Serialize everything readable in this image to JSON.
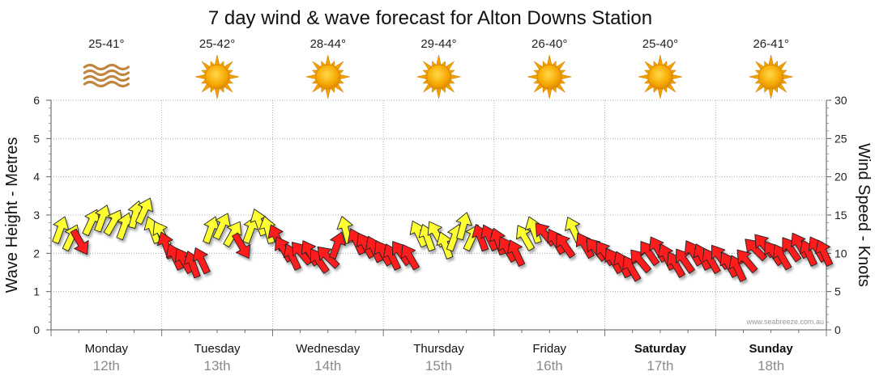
{
  "chart_data": {
    "type": "wind-wave-forecast",
    "title": "7 day wind & wave forecast for Alton Downs Station",
    "ylabel_left": "Wave Height - Metres",
    "ylabel_right": "Wind Speed - Knots",
    "ylim_left": [
      0,
      6
    ],
    "ylim_right": [
      0,
      30
    ],
    "yticks_left": [
      "0",
      "1",
      "2",
      "3",
      "4",
      "5",
      "6"
    ],
    "yticks_right": [
      "0",
      "5",
      "10",
      "15",
      "20",
      "25",
      "30"
    ],
    "credit": "www.seabreeze.com.au",
    "days": [
      {
        "name": "Monday",
        "date": "12th",
        "temp": "25-41°",
        "icon": "waves-icon",
        "bold": false
      },
      {
        "name": "Tuesday",
        "date": "13th",
        "temp": "25-42°",
        "icon": "sun-icon",
        "bold": false
      },
      {
        "name": "Wednesday",
        "date": "14th",
        "temp": "28-44°",
        "icon": "sun-icon",
        "bold": false
      },
      {
        "name": "Thursday",
        "date": "15th",
        "temp": "29-44°",
        "icon": "sun-icon",
        "bold": false
      },
      {
        "name": "Friday",
        "date": "16th",
        "temp": "26-40°",
        "icon": "sun-icon",
        "bold": false
      },
      {
        "name": "Saturday",
        "date": "17th",
        "temp": "25-40°",
        "icon": "sun-icon",
        "bold": true
      },
      {
        "name": "Sunday",
        "date": "18th",
        "temp": "26-41°",
        "icon": "sun-icon",
        "bold": true
      }
    ],
    "series": [
      {
        "name": "wind-speed-knots",
        "colors": {
          "light": "#ffff33",
          "strong": "#ff1a1a"
        },
        "points": [
          {
            "t": 0.08,
            "v": 13,
            "dir": 20,
            "c": "light"
          },
          {
            "t": 0.18,
            "v": 12,
            "dir": 25,
            "c": "light"
          },
          {
            "t": 0.26,
            "v": 11.5,
            "dir": 150,
            "c": "strong"
          },
          {
            "t": 0.36,
            "v": 14,
            "dir": 25,
            "c": "light"
          },
          {
            "t": 0.46,
            "v": 14.5,
            "dir": 20,
            "c": "light"
          },
          {
            "t": 0.56,
            "v": 14,
            "dir": 30,
            "c": "light"
          },
          {
            "t": 0.66,
            "v": 13.5,
            "dir": 20,
            "c": "light"
          },
          {
            "t": 0.76,
            "v": 15,
            "dir": 15,
            "c": "light"
          },
          {
            "t": 0.84,
            "v": 15.5,
            "dir": 25,
            "c": "light"
          },
          {
            "t": 0.92,
            "v": 13,
            "dir": -20,
            "c": "light"
          },
          {
            "t": 1.0,
            "v": 12.5,
            "dir": -30,
            "c": "light"
          },
          {
            "t": 1.04,
            "v": 11,
            "dir": -20,
            "c": "strong"
          },
          {
            "t": 1.12,
            "v": 9.5,
            "dir": -25,
            "c": "strong"
          },
          {
            "t": 1.2,
            "v": 9,
            "dir": -30,
            "c": "strong"
          },
          {
            "t": 1.28,
            "v": 8.5,
            "dir": -20,
            "c": "strong"
          },
          {
            "t": 1.36,
            "v": 9,
            "dir": -25,
            "c": "strong"
          },
          {
            "t": 1.44,
            "v": 13,
            "dir": 20,
            "c": "light"
          },
          {
            "t": 1.54,
            "v": 13.5,
            "dir": 25,
            "c": "light"
          },
          {
            "t": 1.64,
            "v": 12.5,
            "dir": 30,
            "c": "light"
          },
          {
            "t": 1.72,
            "v": 11,
            "dir": 150,
            "c": "strong"
          },
          {
            "t": 1.8,
            "v": 13,
            "dir": 20,
            "c": "light"
          },
          {
            "t": 1.88,
            "v": 14,
            "dir": -20,
            "c": "light"
          },
          {
            "t": 1.96,
            "v": 13,
            "dir": -15,
            "c": "light"
          },
          {
            "t": 2.04,
            "v": 12,
            "dir": -25,
            "c": "strong"
          },
          {
            "t": 2.1,
            "v": 10.5,
            "dir": -30,
            "c": "strong"
          },
          {
            "t": 2.18,
            "v": 9.5,
            "dir": -25,
            "c": "strong"
          },
          {
            "t": 2.26,
            "v": 10,
            "dir": -40,
            "c": "strong"
          },
          {
            "t": 2.34,
            "v": 10,
            "dir": -30,
            "c": "strong"
          },
          {
            "t": 2.42,
            "v": 9,
            "dir": -35,
            "c": "strong"
          },
          {
            "t": 2.5,
            "v": 9.5,
            "dir": -45,
            "c": "strong"
          },
          {
            "t": 2.58,
            "v": 11,
            "dir": 20,
            "c": "strong"
          },
          {
            "t": 2.66,
            "v": 13,
            "dir": -15,
            "c": "light"
          },
          {
            "t": 2.76,
            "v": 11.5,
            "dir": -25,
            "c": "strong"
          },
          {
            "t": 2.84,
            "v": 11,
            "dir": -30,
            "c": "strong"
          },
          {
            "t": 2.92,
            "v": 10.5,
            "dir": -25,
            "c": "strong"
          },
          {
            "t": 3.0,
            "v": 10,
            "dir": -30,
            "c": "strong"
          },
          {
            "t": 3.08,
            "v": 9.5,
            "dir": -25,
            "c": "strong"
          },
          {
            "t": 3.16,
            "v": 10,
            "dir": -35,
            "c": "strong"
          },
          {
            "t": 3.24,
            "v": 9.5,
            "dir": -30,
            "c": "strong"
          },
          {
            "t": 3.32,
            "v": 12.5,
            "dir": -25,
            "c": "light"
          },
          {
            "t": 3.4,
            "v": 12,
            "dir": -20,
            "c": "light"
          },
          {
            "t": 3.48,
            "v": 12.5,
            "dir": -30,
            "c": "light"
          },
          {
            "t": 3.56,
            "v": 11,
            "dir": -20,
            "c": "light"
          },
          {
            "t": 3.64,
            "v": 12,
            "dir": 20,
            "c": "light"
          },
          {
            "t": 3.72,
            "v": 13.5,
            "dir": 15,
            "c": "light"
          },
          {
            "t": 3.8,
            "v": 12,
            "dir": 25,
            "c": "light"
          },
          {
            "t": 3.88,
            "v": 12,
            "dir": -20,
            "c": "strong"
          },
          {
            "t": 3.96,
            "v": 12,
            "dir": -25,
            "c": "strong"
          },
          {
            "t": 4.04,
            "v": 11.5,
            "dir": -20,
            "c": "strong"
          },
          {
            "t": 4.12,
            "v": 10.5,
            "dir": -30,
            "c": "strong"
          },
          {
            "t": 4.2,
            "v": 10,
            "dir": -25,
            "c": "strong"
          },
          {
            "t": 4.28,
            "v": 12,
            "dir": -30,
            "c": "light"
          },
          {
            "t": 4.36,
            "v": 13,
            "dir": -20,
            "c": "light"
          },
          {
            "t": 4.46,
            "v": 12.5,
            "dir": -40,
            "c": "strong"
          },
          {
            "t": 4.56,
            "v": 11.5,
            "dir": -30,
            "c": "strong"
          },
          {
            "t": 4.64,
            "v": 11,
            "dir": -35,
            "c": "strong"
          },
          {
            "t": 4.72,
            "v": 13,
            "dir": -25,
            "c": "light"
          },
          {
            "t": 4.82,
            "v": 11,
            "dir": -30,
            "c": "strong"
          },
          {
            "t": 4.92,
            "v": 10.5,
            "dir": -40,
            "c": "strong"
          },
          {
            "t": 5.0,
            "v": 10,
            "dir": -35,
            "c": "strong"
          },
          {
            "t": 5.08,
            "v": 9,
            "dir": -30,
            "c": "strong"
          },
          {
            "t": 5.16,
            "v": 8.5,
            "dir": -25,
            "c": "strong"
          },
          {
            "t": 5.24,
            "v": 8,
            "dir": -30,
            "c": "strong"
          },
          {
            "t": 5.32,
            "v": 9,
            "dir": -40,
            "c": "strong"
          },
          {
            "t": 5.4,
            "v": 10,
            "dir": -35,
            "c": "strong"
          },
          {
            "t": 5.48,
            "v": 10.5,
            "dir": -30,
            "c": "strong"
          },
          {
            "t": 5.56,
            "v": 9.5,
            "dir": -25,
            "c": "strong"
          },
          {
            "t": 5.64,
            "v": 8.5,
            "dir": -30,
            "c": "strong"
          },
          {
            "t": 5.72,
            "v": 9,
            "dir": -35,
            "c": "strong"
          },
          {
            "t": 5.8,
            "v": 10,
            "dir": -30,
            "c": "strong"
          },
          {
            "t": 5.88,
            "v": 9.5,
            "dir": -25,
            "c": "strong"
          },
          {
            "t": 5.96,
            "v": 9,
            "dir": -30,
            "c": "strong"
          },
          {
            "t": 6.04,
            "v": 9.5,
            "dir": -35,
            "c": "strong"
          },
          {
            "t": 6.12,
            "v": 8.5,
            "dir": -30,
            "c": "strong"
          },
          {
            "t": 6.2,
            "v": 8,
            "dir": -25,
            "c": "strong"
          },
          {
            "t": 6.28,
            "v": 9,
            "dir": -40,
            "c": "strong"
          },
          {
            "t": 6.36,
            "v": 10.5,
            "dir": -45,
            "c": "strong"
          },
          {
            "t": 6.44,
            "v": 11,
            "dir": -40,
            "c": "strong"
          },
          {
            "t": 6.52,
            "v": 10,
            "dir": -35,
            "c": "strong"
          },
          {
            "t": 6.6,
            "v": 9.5,
            "dir": -30,
            "c": "strong"
          },
          {
            "t": 6.68,
            "v": 10.5,
            "dir": -35,
            "c": "strong"
          },
          {
            "t": 6.76,
            "v": 11,
            "dir": -30,
            "c": "strong"
          },
          {
            "t": 6.84,
            "v": 10,
            "dir": -25,
            "c": "strong"
          },
          {
            "t": 6.92,
            "v": 10.5,
            "dir": -30,
            "c": "strong"
          },
          {
            "t": 6.98,
            "v": 10,
            "dir": -25,
            "c": "strong"
          }
        ]
      }
    ]
  }
}
